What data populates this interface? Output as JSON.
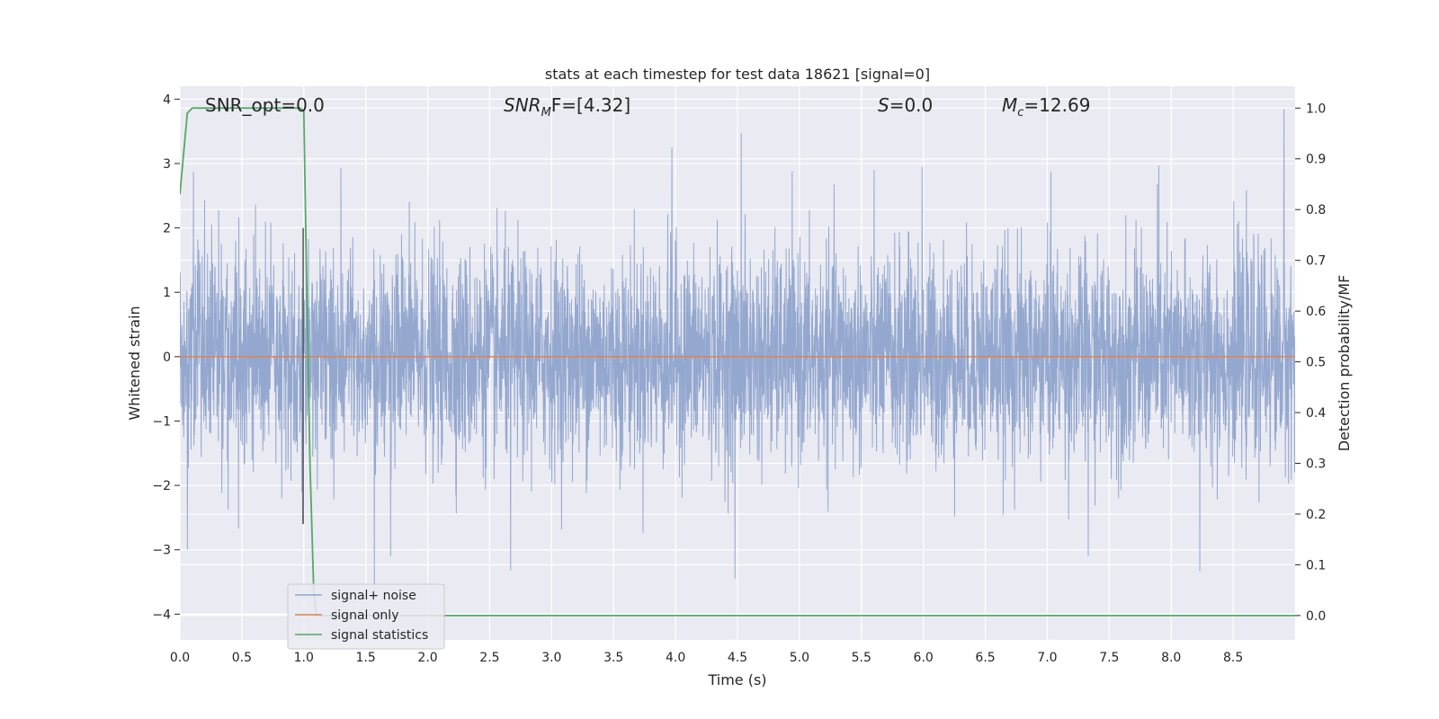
{
  "chart_data": {
    "type": "line",
    "title": "stats at each timestep for test data 18621 [signal=0]",
    "xlabel": "Time (s)",
    "ylabel": "Whitened strain",
    "ylabel_right": "Detection probability/MF",
    "xlim": [
      0.0,
      9.0
    ],
    "ylim": [
      -4.4,
      4.2
    ],
    "ylim_right": [
      -0.048,
      1.043
    ],
    "x_ticks": [
      "0.0",
      "0.5",
      "1.0",
      "1.5",
      "2.0",
      "2.5",
      "3.0",
      "3.5",
      "4.0",
      "4.5",
      "5.0",
      "5.5",
      "6.0",
      "6.5",
      "7.0",
      "7.5",
      "8.0",
      "8.5"
    ],
    "y_ticks": [
      "4",
      "3",
      "2",
      "1",
      "0",
      "−1",
      "−2",
      "−3",
      "−4"
    ],
    "y_ticks_right": [
      "1.0",
      "0.9",
      "0.8",
      "0.7",
      "0.6",
      "0.5",
      "0.4",
      "0.3",
      "0.2",
      "0.1",
      "0.0"
    ],
    "grid": true,
    "legend_position": "lower-left",
    "annotations": {
      "snr_opt": "SNR_opt=0.0",
      "snr_mf_main": "SNR",
      "snr_mf_sub": "M",
      "snr_mf_tail": "F=[4.32]",
      "s_main": "S",
      "s_tail": "=0.0",
      "mc_main": "M",
      "mc_sub": "c",
      "mc_tail": "=12.69"
    },
    "series": [
      {
        "name": "signal+ noise",
        "color": "#8fa4cc",
        "kind": "noise",
        "typical_range": [
          -1.7,
          1.7
        ],
        "peak_values": [
          [
            0.06,
            -3.0
          ],
          [
            0.11,
            2.87
          ],
          [
            0.99,
            -2.6
          ],
          [
            1.02,
            2.0
          ],
          [
            1.3,
            2.93
          ],
          [
            1.57,
            -3.7
          ],
          [
            1.7,
            -3.1
          ],
          [
            2.67,
            -3.32
          ],
          [
            3.97,
            3.25
          ],
          [
            4.53,
            3.47
          ],
          [
            4.48,
            -3.45
          ],
          [
            5.99,
            2.95
          ],
          [
            7.03,
            2.87
          ],
          [
            7.33,
            -3.1
          ],
          [
            7.9,
            2.97
          ],
          [
            8.23,
            -3.33
          ],
          [
            8.91,
            3.85
          ]
        ]
      },
      {
        "name": "signal only",
        "color": "#dd8452",
        "x": [
          0.0,
          9.0
        ],
        "values": [
          0.0,
          0.0
        ]
      },
      {
        "name": "signal statistics",
        "color": "#55a868",
        "axis": "right",
        "x": [
          0.0,
          0.06,
          0.1,
          0.2,
          0.5,
          0.8,
          0.97,
          1.0,
          1.02,
          1.05,
          1.08,
          1.1,
          1.15,
          9.0
        ],
        "values": [
          0.83,
          0.99,
          1.0,
          1.0,
          1.0,
          1.0,
          1.0,
          0.995,
          0.7,
          0.3,
          0.05,
          0.0,
          0.0,
          0.0
        ]
      }
    ]
  }
}
